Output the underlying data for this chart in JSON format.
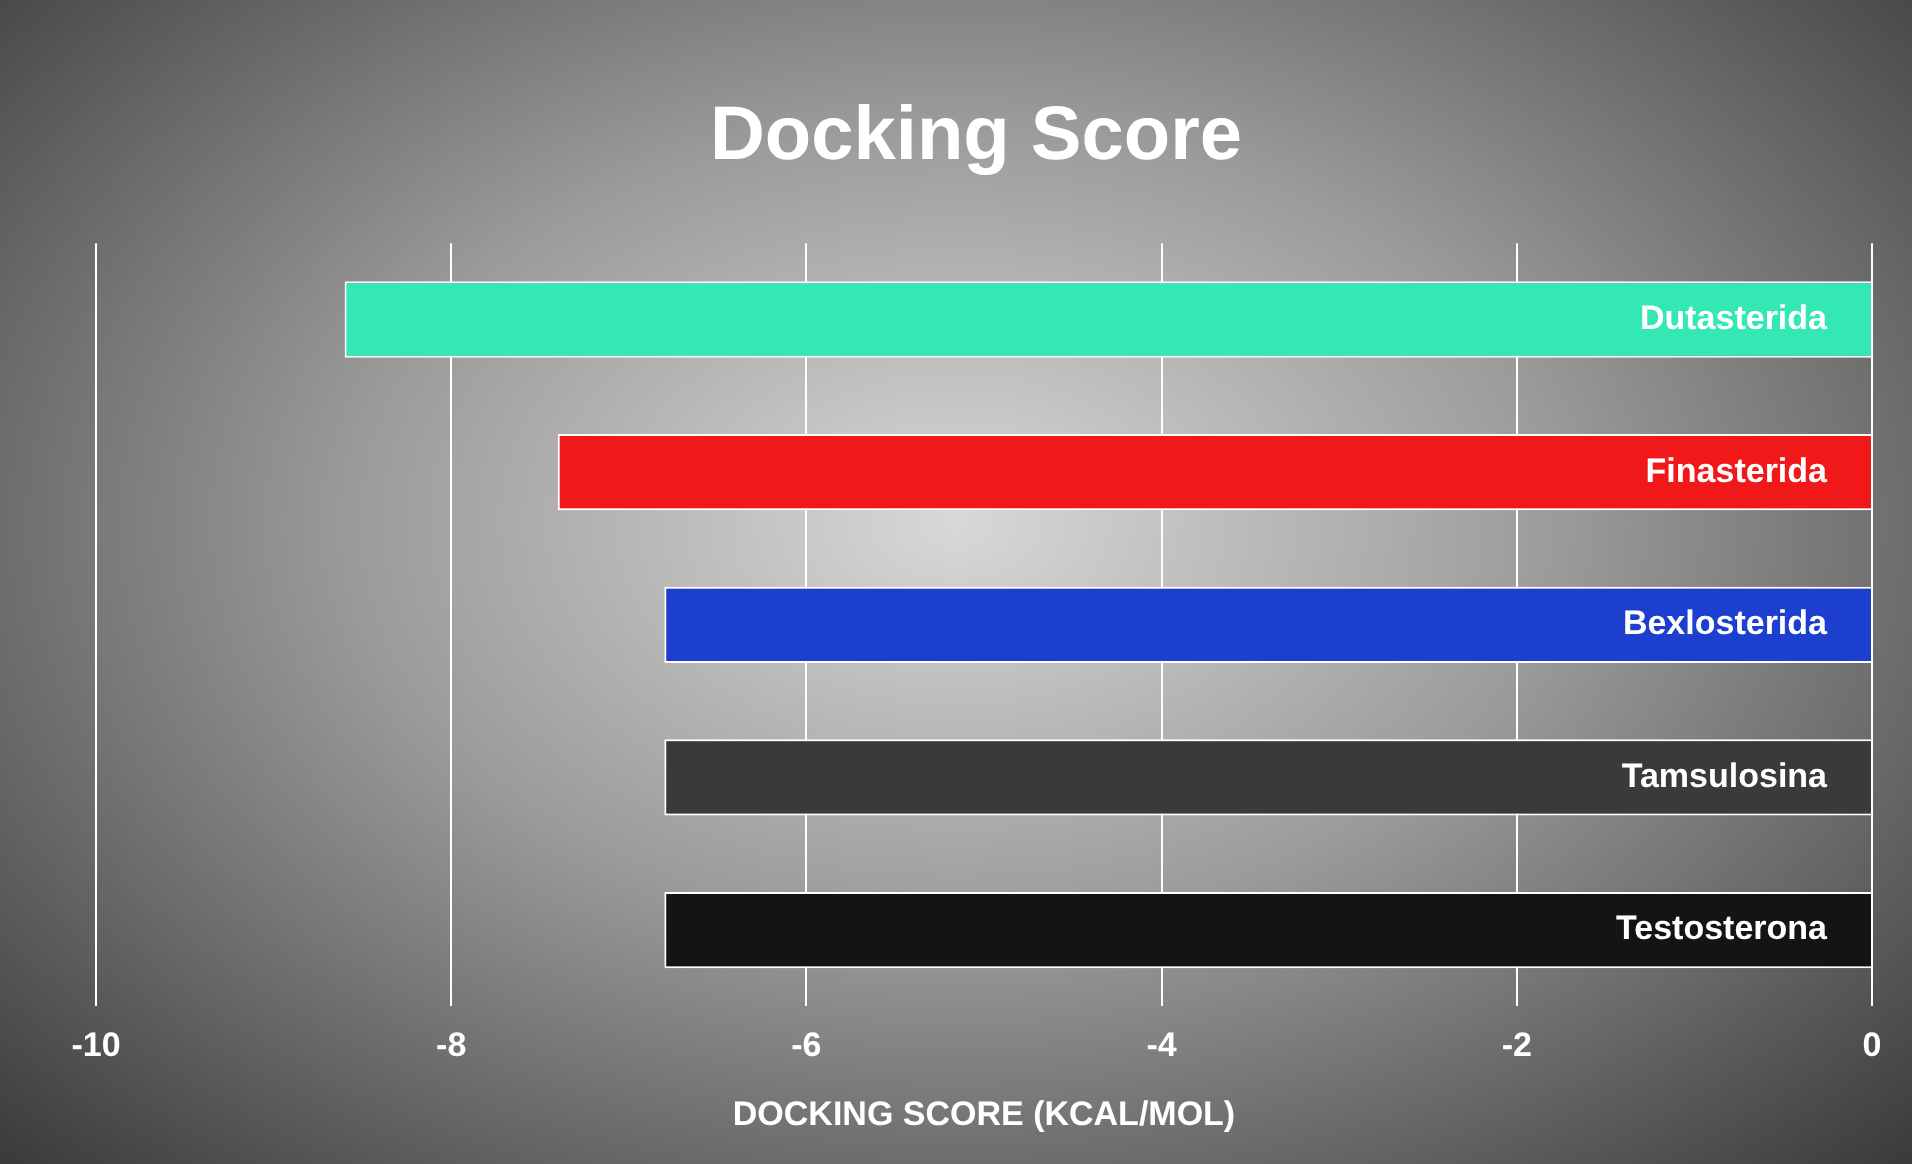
{
  "chart_data": {
    "type": "bar",
    "orientation": "horizontal",
    "title": "Docking Score",
    "xlabel": "DOCKING SCORE (KCAL/MOL)",
    "categories": [
      "Dutasterida",
      "Finasterida",
      "Bexlosterida",
      "Tamsulosina",
      "Testosterona"
    ],
    "values": [
      -8.6,
      -7.4,
      -6.8,
      -6.8,
      -6.8
    ],
    "colors": [
      "#33e8b4",
      "#f01818",
      "#1c3fd0",
      "#3a3a3a",
      "#141414"
    ],
    "xlim": [
      -10,
      0
    ],
    "xticks": [
      -10,
      -8,
      -6,
      -4,
      -2,
      0
    ],
    "grid": "x"
  }
}
